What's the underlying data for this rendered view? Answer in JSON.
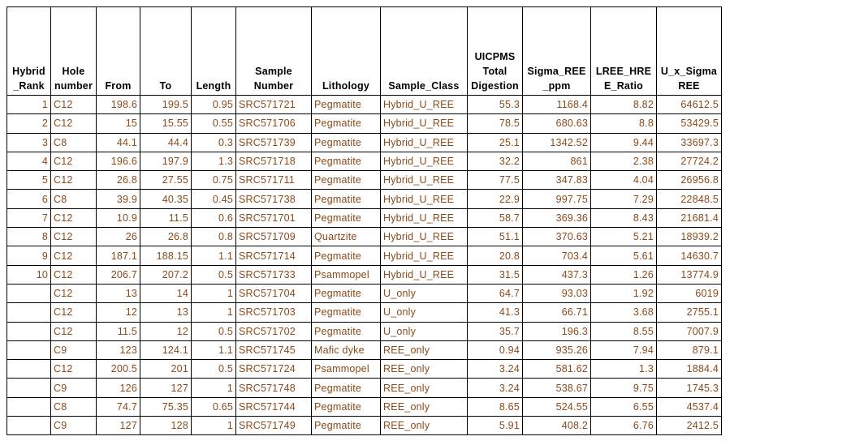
{
  "table": {
    "header": [
      [
        "Hybrid",
        "_Rank"
      ],
      [
        "Hole",
        "number"
      ],
      [
        "From"
      ],
      [
        "To"
      ],
      [
        "Length"
      ],
      [
        "Sample",
        "Number"
      ],
      [
        "Lithology"
      ],
      [
        "Sample_Class"
      ],
      [
        "UICPMS",
        "Total",
        "Digestion"
      ],
      [
        "Sigma_REE",
        "_ppm"
      ],
      [
        "LREE_HRE",
        "E_Ratio"
      ],
      [
        "U_x_Sigma",
        "REE"
      ]
    ],
    "rows": [
      [
        1,
        "C12",
        198.6,
        199.5,
        0.95,
        "SRC571721",
        "Pegmatite",
        "Hybrid_U_REE",
        55.3,
        1168.4,
        8.82,
        64612.5
      ],
      [
        2,
        "C12",
        15,
        15.55,
        0.55,
        "SRC571706",
        "Pegmatite",
        "Hybrid_U_REE",
        78.5,
        680.63,
        8.8,
        53429.5
      ],
      [
        3,
        "C8",
        44.1,
        44.4,
        0.3,
        "SRC571739",
        "Pegmatite",
        "Hybrid_U_REE",
        25.1,
        1342.52,
        9.44,
        33697.3
      ],
      [
        4,
        "C12",
        196.6,
        197.9,
        1.3,
        "SRC571718",
        "Pegmatite",
        "Hybrid_U_REE",
        32.2,
        861,
        2.38,
        27724.2
      ],
      [
        5,
        "C12",
        26.8,
        27.55,
        0.75,
        "SRC571711",
        "Pegmatite",
        "Hybrid_U_REE",
        77.5,
        347.83,
        4.04,
        26956.8
      ],
      [
        6,
        "C8",
        39.9,
        40.35,
        0.45,
        "SRC571738",
        "Pegmatite",
        "Hybrid_U_REE",
        22.9,
        997.75,
        7.29,
        22848.5
      ],
      [
        7,
        "C12",
        10.9,
        11.5,
        0.6,
        "SRC571701",
        "Pegmatite",
        "Hybrid_U_REE",
        58.7,
        369.36,
        8.43,
        21681.4
      ],
      [
        8,
        "C12",
        26,
        26.8,
        0.8,
        "SRC571709",
        "Quartzite",
        "Hybrid_U_REE",
        51.1,
        370.63,
        5.21,
        18939.2
      ],
      [
        9,
        "C12",
        187.1,
        188.15,
        1.1,
        "SRC571714",
        "Pegmatite",
        "Hybrid_U_REE",
        20.8,
        703.4,
        5.61,
        14630.7
      ],
      [
        10,
        "C12",
        206.7,
        207.2,
        0.5,
        "SRC571733",
        "Psammopel",
        "Hybrid_U_REE",
        31.5,
        437.3,
        1.26,
        13774.9
      ],
      [
        null,
        "C12",
        13,
        14,
        1,
        "SRC571704",
        "Pegmatite",
        "U_only",
        64.7,
        93.03,
        1.92,
        6019
      ],
      [
        null,
        "C12",
        12,
        13,
        1,
        "SRC571703",
        "Pegmatite",
        "U_only",
        41.3,
        66.71,
        3.68,
        2755.1
      ],
      [
        null,
        "C12",
        11.5,
        12,
        0.5,
        "SRC571702",
        "Pegmatite",
        "U_only",
        35.7,
        196.3,
        8.55,
        7007.9
      ],
      [
        null,
        "C9",
        123,
        124.1,
        1.1,
        "SRC571745",
        "Mafic dyke",
        "REE_only",
        0.94,
        935.26,
        7.94,
        879.1
      ],
      [
        null,
        "C12",
        200.5,
        201,
        0.5,
        "SRC571724",
        "Psammopel",
        "REE_only",
        3.24,
        581.62,
        1.3,
        1884.4
      ],
      [
        null,
        "C9",
        126,
        127,
        1,
        "SRC571748",
        "Pegmatite",
        "REE_only",
        3.24,
        538.67,
        9.75,
        1745.3
      ],
      [
        null,
        "C8",
        74.7,
        75.35,
        0.65,
        "SRC571744",
        "Pegmatite",
        "REE_only",
        8.65,
        524.55,
        6.55,
        4537.4
      ],
      [
        null,
        "C9",
        127,
        128,
        1,
        "SRC571749",
        "Pegmatite",
        "REE_only",
        5.91,
        408.2,
        6.76,
        2412.5
      ]
    ]
  }
}
